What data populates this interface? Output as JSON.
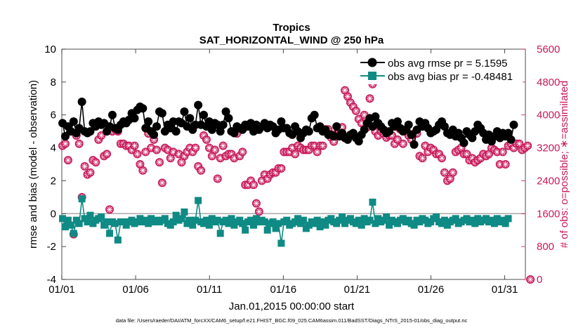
{
  "chart_data": {
    "type": "line",
    "title": "Tropics",
    "subtitle": "SAT_HORIZONTAL_WIND @ 250 hPa",
    "xlabel": "Jan.01,2015 00:00:00 start",
    "ylabel": "rmse and bias (model - observation)",
    "y2label": "# of obs: o=possible; ∗=assimilated",
    "footnote": "data file: /Users/raeder/DAI/ATM_forcXX/CAM6_setup/f.e21.FHIST_BGC.f09_025.CAM6assim.011/BadSST/Diags_NTrS_2015-01/obs_diag_output.nc",
    "xlim": [
      1,
      32.4
    ],
    "ylim": [
      -4,
      10
    ],
    "y2lim": [
      0,
      5600
    ],
    "x_ticks": [
      1,
      6,
      11,
      16,
      21,
      26,
      31
    ],
    "x_tick_labels": [
      "01/01",
      "01/06",
      "01/11",
      "01/16",
      "01/21",
      "01/26",
      "01/31"
    ],
    "y_ticks": [
      -4,
      -2,
      0,
      2,
      4,
      6,
      8,
      10
    ],
    "y_tick_labels": [
      "-4",
      "-2",
      "0",
      "2",
      "4",
      "6",
      "8",
      "10"
    ],
    "y2_ticks": [
      0,
      800,
      1600,
      2400,
      3200,
      4000,
      4800,
      5600
    ],
    "y2_tick_labels": [
      "0",
      "800",
      "1600",
      "2400",
      "3200",
      "4000",
      "4800",
      "5600"
    ],
    "zero_line": 0,
    "legend": {
      "placement": "top-right",
      "entries": [
        "obs avg rmse pr = 5.1595",
        "obs avg bias pr = -0.48481"
      ]
    },
    "colors": {
      "rmse": "#000000",
      "bias": "#0f8a84",
      "count": "#c8195a",
      "zero": "#aaaaaa"
    },
    "series": [
      {
        "name": "obs avg rmse pr = 5.1595",
        "values": [
          5.5,
          4.7,
          5.3,
          5.0,
          5.6,
          4.9,
          5.2,
          6.8,
          5.0,
          4.9,
          5.0,
          5.5,
          5.3,
          5.6,
          5.4,
          5.5,
          5.0,
          5.3,
          6.0,
          5.2,
          5.1,
          5.4,
          5.6,
          5.5,
          5.7,
          6.1,
          5.8,
          6.3,
          6.5,
          6.4,
          5.2,
          5.6,
          5.0,
          4.8,
          5.3,
          6.2,
          6.1,
          5.0,
          5.4,
          5.2,
          5.6,
          5.0,
          5.6,
          5.5,
          6.2,
          5.3,
          5.8,
          5.1,
          5.4,
          6.6,
          5.4,
          6.0,
          5.3,
          5.6,
          5.1,
          5.5,
          5.4,
          5.0,
          5.4,
          6.2,
          5.8,
          5.0,
          4.9,
          5.3,
          5.2,
          5.1,
          5.4,
          5.3,
          5.5,
          5.0,
          5.4,
          5.1,
          5.3,
          5.5,
          5.2,
          5.4,
          5.3,
          4.9,
          5.1,
          5.6,
          5.2,
          5.2,
          4.9,
          4.8,
          5.3,
          5.0,
          4.6,
          4.9,
          5.1,
          5.0,
          5.8,
          6.0,
          5.2,
          5.3,
          5.0,
          5.1,
          4.8,
          4.8,
          4.7,
          5.3,
          4.7,
          4.9,
          4.6,
          4.5,
          4.8,
          4.9,
          4.6,
          4.4,
          4.8,
          5.1,
          5.5,
          5.8,
          5.3,
          5.9,
          5.5,
          5.3,
          5.1,
          4.9,
          5.0,
          5.5,
          5.3,
          5.6,
          5.2,
          5.0,
          5.1,
          5.4,
          4.8,
          4.2,
          5.1,
          5.6,
          5.3,
          5.5,
          5.2,
          4.9,
          5.0,
          5.1,
          5.4,
          5.6,
          5.3,
          4.9,
          4.8,
          5.1,
          4.7,
          4.9,
          4.6,
          4.3,
          5.0,
          4.8,
          4.6,
          5.0,
          5.4,
          5.2,
          4.9,
          4.5,
          4.8,
          4.4,
          4.7,
          5.0,
          4.6,
          4.9,
          4.7,
          4.9,
          4.5,
          5.4
        ]
      },
      {
        "name": "obs avg bias pr = -0.48481",
        "values": [
          -0.3,
          -0.8,
          -0.4,
          -0.7,
          -1.2,
          -0.4,
          -0.6,
          0.9,
          -0.3,
          -0.5,
          -0.1,
          -0.6,
          -0.4,
          -0.3,
          -0.2,
          -0.7,
          -0.5,
          -1.2,
          -0.5,
          -0.6,
          -1.6,
          -0.5,
          -0.5,
          -0.7,
          -0.5,
          -0.4,
          -0.6,
          -0.5,
          -0.3,
          -0.5,
          -0.4,
          -0.6,
          -0.3,
          -0.5,
          -0.4,
          -0.5,
          -0.4,
          -0.3,
          -0.6,
          -0.7,
          -0.5,
          -0.1,
          -0.4,
          -0.3,
          0.1,
          -0.6,
          -0.4,
          -0.7,
          -0.4,
          0.8,
          -0.5,
          -0.6,
          -0.4,
          -0.7,
          -0.3,
          -0.5,
          -0.4,
          -1.2,
          -0.5,
          -0.4,
          -0.6,
          -0.3,
          -0.7,
          -0.5,
          -0.4,
          -0.6,
          -1.0,
          -0.5,
          -0.4,
          -0.7,
          -0.3,
          -0.5,
          -0.4,
          -0.5,
          -1.0,
          -0.6,
          -0.5,
          -0.9,
          -0.6,
          -1.8,
          -0.5,
          -0.4,
          -0.7,
          -0.6,
          -0.5,
          -0.3,
          -0.6,
          -0.4,
          -0.9,
          -0.7,
          -0.5,
          -0.6,
          -0.4,
          -0.8,
          -0.5,
          -0.7,
          -0.4,
          -0.3,
          -0.5,
          -0.6,
          -0.4,
          -0.2,
          -0.6,
          -0.4,
          -0.3,
          -0.5,
          -0.6,
          -0.4,
          -0.7,
          -0.3,
          -0.5,
          -0.4,
          0.7,
          -0.6,
          -0.3,
          -0.5,
          -0.4,
          -0.2,
          -0.7,
          -0.4,
          -0.5,
          -0.6,
          -0.4,
          -0.3,
          -0.5,
          -0.4,
          -0.6,
          -0.7,
          -0.4,
          -0.5,
          -0.3,
          -0.4,
          -0.6,
          -0.5,
          -0.3,
          -0.2,
          -0.5,
          -0.6,
          -0.4,
          -0.7,
          -0.5,
          -0.4,
          -0.3,
          -0.6,
          -0.5,
          -0.4,
          -0.3,
          -0.5,
          -0.4,
          -0.6,
          -0.3,
          -0.5,
          -0.4,
          -0.3,
          -0.5,
          -0.4,
          -0.6,
          -0.3,
          -0.5,
          -0.4,
          -0.6,
          -0.3
        ]
      }
    ],
    "obs_counts": {
      "name": "# of obs possible",
      "values": [
        3250,
        3300,
        2900,
        3600,
        1100,
        3500,
        3300,
        2000,
        2750,
        2550,
        2600,
        2900,
        2850,
        3400,
        3500,
        3000,
        3050,
        1700,
        3600,
        3650,
        3600,
        3300,
        3300,
        3250,
        3250,
        3150,
        3250,
        3050,
        2800,
        2650,
        3100,
        3550,
        3200,
        3400,
        3150,
        2850,
        2350,
        3200,
        3150,
        2950,
        3100,
        3600,
        3050,
        2850,
        3000,
        3100,
        3200,
        3100,
        3200,
        2750,
        2650,
        3500,
        3400,
        3200,
        3000,
        3150,
        2450,
        2950,
        3250,
        3000,
        3050,
        3050,
        2950,
        3550,
        3000,
        3100,
        2300,
        2300,
        2400,
        2300,
        1850,
        1650,
        2400,
        2550,
        2450,
        2550,
        2600,
        2600,
        2700,
        2700,
        3100,
        3100,
        3100,
        3200,
        3050,
        3250,
        3200,
        3150,
        3150,
        3150,
        3250,
        3250,
        3100,
        3250,
        3250,
        3650,
        3650,
        3450,
        3350,
        3550,
        3600,
        3700,
        4600,
        4450,
        4300,
        4200,
        4100,
        3900,
        3800,
        4000,
        3700,
        4400,
        4750,
        3600,
        3500,
        3600,
        3550,
        3450,
        3500,
        3500,
        3300,
        3400,
        3650,
        3300,
        3600,
        3500,
        3400,
        3550,
        3550,
        3000,
        2950,
        3250,
        3100,
        3200,
        3150,
        3050,
        3050,
        2950,
        2600,
        2400,
        2450,
        2600,
        3100,
        3150,
        3200,
        3050,
        3050,
        2900,
        2950,
        2850,
        2900,
        2950,
        3050,
        3000,
        3050,
        3200,
        3150,
        3100,
        2800,
        3100,
        2800,
        3250,
        3300,
        3200,
        3300,
        3300,
        3150,
        3200,
        3250,
        0
      ]
    }
  }
}
